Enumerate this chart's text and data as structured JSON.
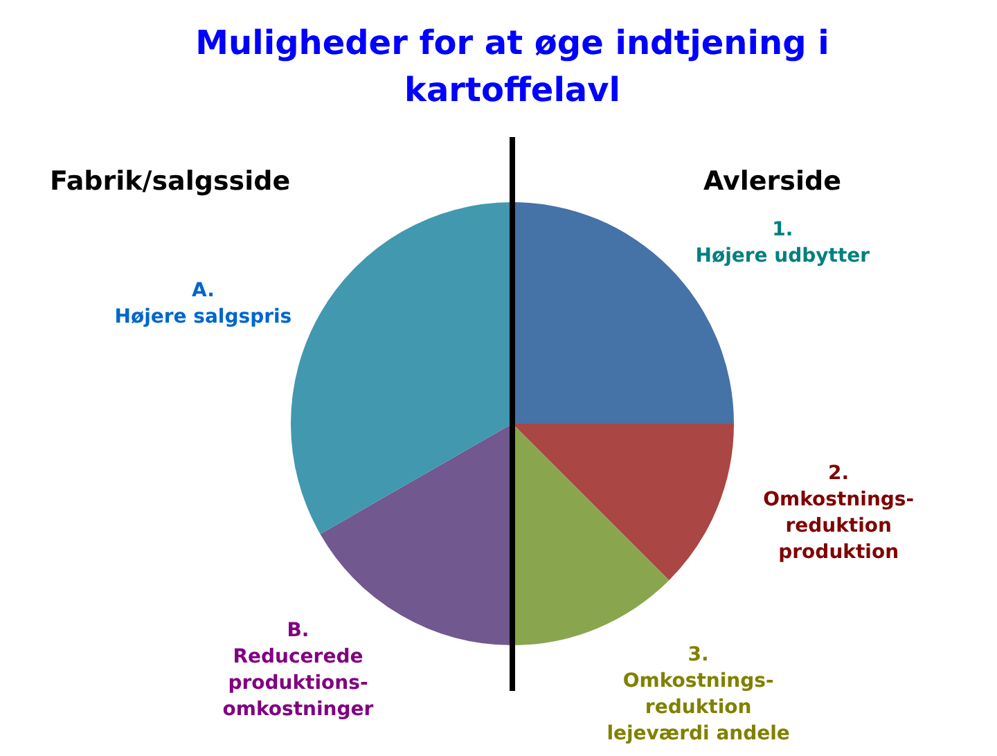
{
  "chart_data": {
    "type": "pie",
    "title": "Muligheder for at øge indtjening i kartoffelavl",
    "categories": [
      "1.\nHøjere udbytter",
      "2.\nOmkostnings-\nreduktion\nproduktion",
      "3.\nOmkostnings-\nreduktion\nlejeværdi andele",
      "B.\nReducerede\nproduktions-\nomkostninger",
      "A.\nHøjere salgspris"
    ],
    "values": [
      25,
      12.5,
      12.5,
      16.7,
      33.3
    ],
    "colors": [
      "#4572a7",
      "#aa4643",
      "#89a54e",
      "#71588f",
      "#4198af"
    ],
    "legend": false,
    "annotations": [
      "Fabrik/salgsside",
      "Avlerside"
    ]
  }
}
